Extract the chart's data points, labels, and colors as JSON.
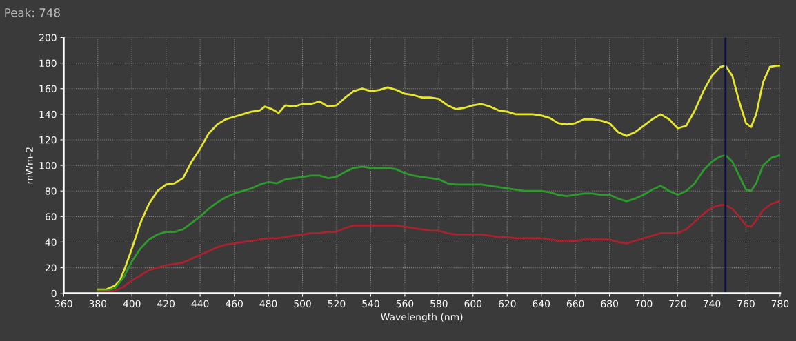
{
  "chart_data": {
    "type": "line",
    "title": "Peak: 748",
    "xlabel": "Wavelength (nm)",
    "ylabel": "mWm-2",
    "xlim": [
      360,
      780
    ],
    "xticks": [
      360,
      380,
      400,
      420,
      440,
      460,
      480,
      500,
      520,
      540,
      560,
      580,
      600,
      620,
      640,
      660,
      680,
      700,
      720,
      740,
      760,
      780
    ],
    "ylim": [
      0,
      200
    ],
    "yticks": [
      0,
      20,
      40,
      60,
      80,
      100,
      120,
      140,
      160,
      180,
      200
    ],
    "grid": true,
    "marker": "none",
    "line_style": "solid",
    "ref_lines": [
      {
        "axis": "x",
        "value": 748,
        "color": "#0b0f3a",
        "line_style": "solid"
      }
    ],
    "series": [
      {
        "color": "#e8e82a",
        "x": [
          380,
          385,
          390,
          393,
          396,
          400,
          405,
          410,
          415,
          420,
          425,
          430,
          435,
          440,
          445,
          450,
          455,
          460,
          465,
          470,
          475,
          478,
          482,
          486,
          490,
          495,
          500,
          505,
          510,
          515,
          520,
          525,
          530,
          535,
          540,
          545,
          550,
          555,
          560,
          565,
          570,
          575,
          580,
          585,
          590,
          595,
          600,
          605,
          610,
          615,
          620,
          625,
          630,
          635,
          640,
          645,
          650,
          655,
          660,
          665,
          670,
          675,
          680,
          685,
          690,
          695,
          700,
          705,
          710,
          715,
          720,
          725,
          730,
          735,
          740,
          745,
          748,
          752,
          756,
          760,
          763,
          766,
          770,
          774,
          778,
          780
        ],
        "values": [
          3,
          3,
          6,
          10,
          20,
          35,
          55,
          70,
          80,
          85,
          86,
          90,
          103,
          113,
          125,
          132,
          136,
          138,
          140,
          142,
          143,
          146,
          144,
          141,
          147,
          146,
          148,
          148,
          150,
          146,
          147,
          153,
          158,
          160,
          158,
          159,
          161,
          159,
          156,
          155,
          153,
          153,
          152,
          147,
          144,
          145,
          147,
          148,
          146,
          143,
          142,
          140,
          140,
          140,
          139,
          137,
          133,
          132,
          133,
          136,
          136,
          135,
          133,
          126,
          123,
          126,
          131,
          136,
          140,
          136,
          129,
          131,
          143,
          158,
          170,
          177,
          178,
          170,
          150,
          133,
          130,
          140,
          165,
          177,
          178,
          178
        ]
      },
      {
        "color": "#2e9a2e",
        "x": [
          380,
          385,
          390,
          395,
          400,
          405,
          410,
          415,
          420,
          425,
          430,
          435,
          440,
          445,
          450,
          455,
          460,
          465,
          470,
          475,
          480,
          485,
          490,
          495,
          500,
          505,
          510,
          515,
          520,
          525,
          530,
          535,
          540,
          545,
          550,
          555,
          560,
          565,
          570,
          575,
          580,
          585,
          590,
          595,
          600,
          605,
          610,
          615,
          620,
          625,
          630,
          635,
          640,
          645,
          650,
          655,
          660,
          665,
          670,
          675,
          680,
          685,
          690,
          695,
          700,
          705,
          710,
          715,
          720,
          725,
          730,
          735,
          740,
          745,
          748,
          752,
          756,
          760,
          763,
          766,
          770,
          775,
          780
        ],
        "values": [
          2,
          2,
          4,
          12,
          25,
          35,
          42,
          46,
          48,
          48,
          50,
          55,
          60,
          66,
          71,
          75,
          78,
          80,
          82,
          85,
          87,
          86,
          89,
          90,
          91,
          92,
          92,
          90,
          91,
          95,
          98,
          99,
          98,
          98,
          98,
          97,
          94,
          92,
          91,
          90,
          89,
          86,
          85,
          85,
          85,
          85,
          84,
          83,
          82,
          81,
          80,
          80,
          80,
          79,
          77,
          76,
          77,
          78,
          78,
          77,
          77,
          74,
          72,
          74,
          77,
          81,
          84,
          80,
          77,
          80,
          86,
          96,
          103,
          107,
          108,
          103,
          92,
          81,
          80,
          86,
          100,
          106,
          108
        ]
      },
      {
        "color": "#a8232e",
        "x": [
          380,
          385,
          390,
          395,
          400,
          405,
          410,
          415,
          420,
          425,
          430,
          435,
          440,
          445,
          450,
          455,
          460,
          465,
          470,
          475,
          480,
          485,
          490,
          495,
          500,
          505,
          510,
          515,
          520,
          525,
          530,
          535,
          540,
          545,
          550,
          555,
          560,
          565,
          570,
          575,
          580,
          585,
          590,
          595,
          600,
          605,
          610,
          615,
          620,
          625,
          630,
          635,
          640,
          645,
          650,
          655,
          660,
          665,
          670,
          675,
          680,
          685,
          690,
          695,
          700,
          705,
          710,
          715,
          720,
          725,
          730,
          735,
          740,
          745,
          748,
          752,
          756,
          760,
          763,
          766,
          770,
          775,
          780
        ],
        "values": [
          1,
          1,
          2,
          5,
          10,
          14,
          18,
          20,
          22,
          23,
          24,
          27,
          30,
          33,
          36,
          38,
          39,
          40,
          41,
          42,
          43,
          43,
          44,
          45,
          46,
          47,
          47,
          48,
          48,
          51,
          53,
          53,
          53,
          53,
          53,
          53,
          52,
          51,
          50,
          49,
          49,
          47,
          46,
          46,
          46,
          46,
          45,
          44,
          44,
          43,
          43,
          43,
          43,
          42,
          41,
          41,
          41,
          42,
          42,
          42,
          42,
          40,
          39,
          41,
          43,
          45,
          47,
          47,
          47,
          50,
          56,
          62,
          67,
          69,
          69,
          66,
          60,
          53,
          52,
          57,
          65,
          70,
          72
        ]
      }
    ]
  }
}
